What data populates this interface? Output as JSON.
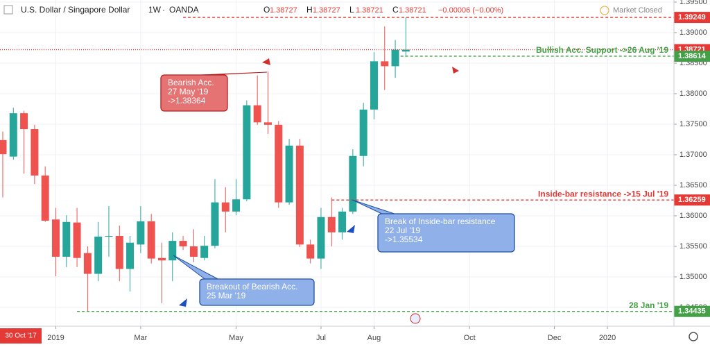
{
  "chart_data": {
    "type": "candlestick",
    "title": "U.S. Dollar / Singapore Dollar",
    "interval": "1W",
    "source": "OANDA",
    "ohlc_labels": [
      "O",
      "H",
      "L",
      "C"
    ],
    "ohlc_values": [
      1.38727,
      1.38727,
      1.38721,
      1.38721
    ],
    "change": "−0.00006 (−0.00%)",
    "status": "Market Closed",
    "crosshair_label": "30 Oct '17",
    "up_color": "#26a69a",
    "down_color": "#ef5350",
    "x": [
      0,
      1,
      2,
      3,
      4,
      5,
      6,
      7,
      8,
      9,
      10,
      11,
      12,
      13,
      14,
      15,
      16,
      17,
      18,
      19,
      20,
      21,
      22,
      23,
      24,
      25,
      26,
      27,
      28,
      29,
      30,
      31,
      32,
      33,
      34,
      35,
      36,
      37,
      38
    ],
    "open": [
      1.3724,
      1.3697,
      1.3768,
      1.3742,
      1.3666,
      1.3594,
      1.3533,
      1.3589,
      1.3539,
      1.3505,
      1.3566,
      1.3567,
      1.3513,
      1.3553,
      1.3591,
      1.3531,
      1.3527,
      1.3559,
      1.355,
      1.3531,
      1.3551,
      1.3622,
      1.3607,
      1.3627,
      1.3781,
      1.3753,
      1.3749,
      1.3622,
      1.3715,
      1.3553,
      1.353,
      1.3598,
      1.3573,
      1.3607,
      1.3698,
      1.3774,
      1.3853,
      1.3845,
      1.3869
    ],
    "high": [
      1.3738,
      1.3777,
      1.3772,
      1.3749,
      1.3681,
      1.3613,
      1.3601,
      1.3613,
      1.355,
      1.359,
      1.3616,
      1.3584,
      1.3567,
      1.3616,
      1.3603,
      1.3556,
      1.3573,
      1.3567,
      1.3578,
      1.3567,
      1.366,
      1.3647,
      1.366,
      1.3789,
      1.383,
      1.38364,
      1.3755,
      1.3726,
      1.3726,
      1.3561,
      1.3613,
      1.363,
      1.3613,
      1.3709,
      1.3785,
      1.3868,
      1.391,
      1.3888,
      1.39249
    ],
    "low": [
      1.363,
      1.3692,
      1.3669,
      1.3652,
      1.359,
      1.3501,
      1.3516,
      1.3516,
      1.3444,
      1.3493,
      1.3533,
      1.3493,
      1.3476,
      1.3539,
      1.3522,
      1.3457,
      1.3493,
      1.3544,
      1.3524,
      1.3527,
      1.3547,
      1.3573,
      1.3601,
      1.3624,
      1.3749,
      1.3734,
      1.3613,
      1.3618,
      1.3549,
      1.3522,
      1.3513,
      1.355,
      1.3561,
      1.3603,
      1.3681,
      1.3758,
      1.3806,
      1.3826,
      1.386
    ],
    "close": [
      1.3701,
      1.3768,
      1.3742,
      1.3666,
      1.3592,
      1.3533,
      1.359,
      1.3531,
      1.3505,
      1.3566,
      1.3567,
      1.3513,
      1.3556,
      1.3591,
      1.353,
      1.3527,
      1.3559,
      1.355,
      1.3533,
      1.3551,
      1.3622,
      1.3607,
      1.3627,
      1.3781,
      1.3753,
      1.3749,
      1.3622,
      1.3715,
      1.3553,
      1.353,
      1.3598,
      1.3573,
      1.3607,
      1.3698,
      1.3774,
      1.3853,
      1.3845,
      1.3872,
      1.38721
    ],
    "xlim": [
      -0.26,
      63.27
    ],
    "xticks": [
      {
        "value": 5,
        "label": "2019"
      },
      {
        "value": 13,
        "label": "Mar"
      },
      {
        "value": 22,
        "label": "May"
      },
      {
        "value": 30,
        "label": "Jul"
      },
      {
        "value": 35,
        "label": "Aug"
      },
      {
        "value": 44,
        "label": "Oct"
      },
      {
        "value": 52,
        "label": "Dec"
      },
      {
        "value": 57,
        "label": "2020"
      }
    ],
    "ylim": [
      1.34193,
      1.39534
    ],
    "yticks": [
      {
        "value": 1.395,
        "label": "1.39500"
      },
      {
        "value": 1.39,
        "label": "1.39000"
      },
      {
        "value": 1.385,
        "label": "1.38500"
      },
      {
        "value": 1.38,
        "label": "1.38000"
      },
      {
        "value": 1.375,
        "label": "1.37500"
      },
      {
        "value": 1.37,
        "label": "1.37000"
      },
      {
        "value": 1.365,
        "label": "1.36500"
      },
      {
        "value": 1.36,
        "label": "1.36000"
      },
      {
        "value": 1.355,
        "label": "1.35500"
      },
      {
        "value": 1.35,
        "label": "1.35000"
      },
      {
        "value": 1.345,
        "label": "1.34500"
      }
    ],
    "grid": true,
    "levels": [
      {
        "value": 1.39249,
        "color": "#e53935",
        "start": 17
      },
      {
        "value": 1.38721,
        "color": "#e53935",
        "start": -0.26
      },
      {
        "value": 1.38614,
        "color": "#43a047",
        "start": 37.5,
        "text": "Bullish Acc. Support ->26 Aug '19"
      },
      {
        "value": 1.36259,
        "color": "#e53935",
        "start": 31,
        "text": "Inside-bar resistance ->15 Jul '19"
      },
      {
        "value": 1.34435,
        "color": "#43a047",
        "start": 7,
        "text": "28 Jan '19"
      }
    ],
    "callouts": [
      {
        "lines": [
          "Bearish Acc.",
          "27 May '19",
          "->1.38364"
        ],
        "color": "#e57373"
      },
      {
        "lines": [
          "Break of Inside-bar resistance",
          "22 Jul '19",
          "->1.35534"
        ],
        "color": "#8fb0e8"
      },
      {
        "lines": [
          "Breakout of Bearish Acc.",
          "25 Mar '19"
        ],
        "color": "#8fb0e8"
      }
    ]
  }
}
